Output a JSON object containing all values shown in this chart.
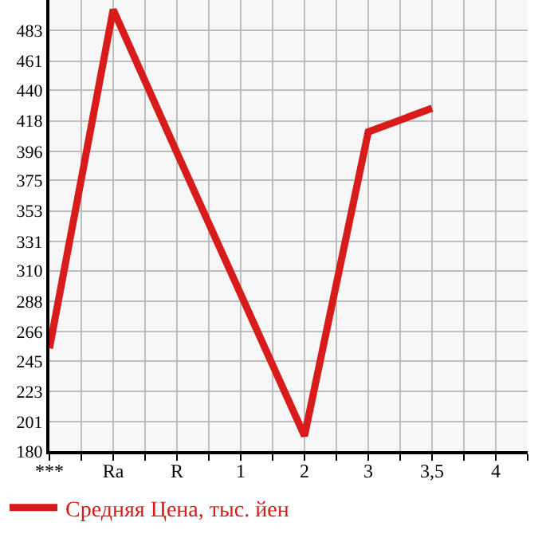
{
  "chart_data": {
    "type": "line",
    "categories": [
      "***",
      "Ra",
      "R",
      "1",
      "2",
      "3",
      "3,5",
      "4"
    ],
    "series": [
      {
        "name": "Средняя Цена, тыс. йен",
        "color": "#d81b1b",
        "values": [
          254,
          498,
          395,
          293,
          191,
          410,
          427,
          null
        ]
      }
    ],
    "ylim": [
      180,
      505
    ],
    "yticks": [
      180,
      201,
      223,
      245,
      266,
      288,
      310,
      331,
      353,
      375,
      396,
      418,
      440,
      461,
      483
    ],
    "grid": true,
    "legend": "bottom",
    "marker": "none",
    "line_style": "solid"
  }
}
